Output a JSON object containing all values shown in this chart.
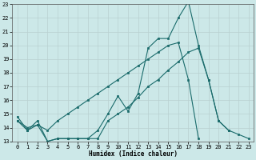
{
  "xlabel": "Humidex (Indice chaleur)",
  "background_color": "#cce8e8",
  "line_color": "#1a6b6b",
  "xlim": [
    -0.5,
    23.5
  ],
  "ylim": [
    13,
    23
  ],
  "yticks": [
    13,
    14,
    15,
    16,
    17,
    18,
    19,
    20,
    21,
    22,
    23
  ],
  "xticks": [
    0,
    1,
    2,
    3,
    4,
    5,
    6,
    7,
    8,
    9,
    10,
    11,
    12,
    13,
    14,
    15,
    16,
    17,
    18,
    19,
    20,
    21,
    22,
    23
  ],
  "line1_x": [
    0,
    1,
    2,
    3,
    4,
    5,
    6,
    7,
    8,
    9,
    10,
    11,
    12,
    13,
    14,
    15,
    16,
    17,
    18,
    19,
    20,
    21
  ],
  "line1_y": [
    14.8,
    13.8,
    14.5,
    13.0,
    13.2,
    13.2,
    13.2,
    13.2,
    13.8,
    15.0,
    16.3,
    15.2,
    16.5,
    19.8,
    20.5,
    20.5,
    22.0,
    23.2,
    20.0,
    17.5,
    14.5,
    13.8
  ],
  "line2_x": [
    0,
    1,
    2,
    3,
    4,
    5,
    6,
    7,
    8,
    9,
    10,
    11,
    12,
    13,
    14,
    15,
    16,
    17,
    18
  ],
  "line2_y": [
    14.5,
    14.0,
    14.2,
    13.8,
    14.5,
    15.0,
    15.5,
    16.0,
    16.5,
    17.0,
    17.5,
    18.0,
    18.5,
    19.0,
    19.5,
    20.0,
    20.2,
    17.5,
    13.2
  ],
  "line3_x": [
    0,
    1,
    2,
    3,
    4,
    5,
    6,
    7,
    8,
    9,
    10,
    11,
    12,
    13,
    14,
    15,
    16,
    17,
    18,
    19,
    20,
    21,
    22,
    23
  ],
  "line3_y": [
    14.5,
    13.8,
    14.2,
    13.0,
    13.2,
    13.2,
    13.2,
    13.2,
    13.2,
    14.5,
    15.0,
    15.5,
    16.2,
    17.0,
    17.5,
    18.2,
    18.8,
    19.5,
    19.8,
    17.5,
    14.5,
    13.8,
    13.5,
    13.2
  ]
}
